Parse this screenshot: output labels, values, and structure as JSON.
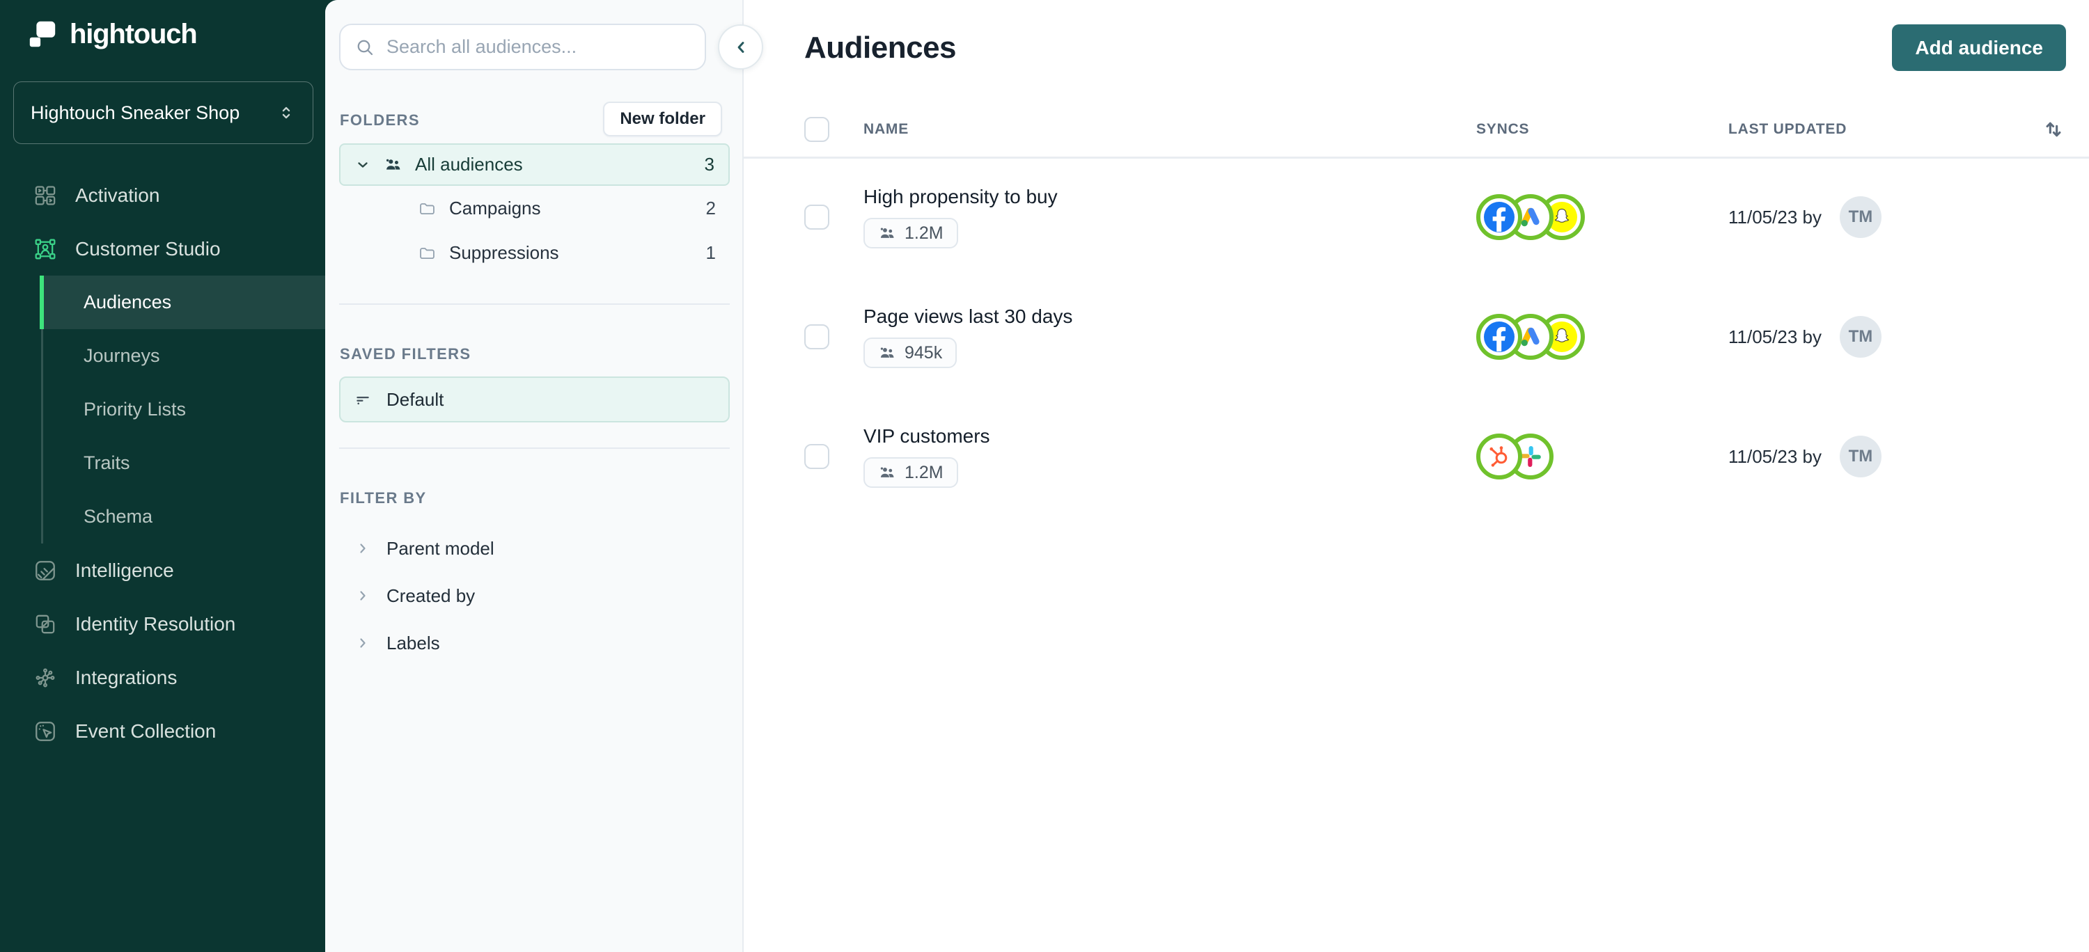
{
  "sidebar": {
    "logo_text": "hightouch",
    "workspace": {
      "name": "Hightouch Sneaker Shop"
    },
    "nav": [
      {
        "label": "Activation",
        "icon": "activation-icon",
        "active": false
      },
      {
        "label": "Customer Studio",
        "icon": "customer-studio-icon",
        "active": true,
        "children": [
          {
            "label": "Audiences",
            "selected": true
          },
          {
            "label": "Journeys",
            "selected": false
          },
          {
            "label": "Priority Lists",
            "selected": false
          },
          {
            "label": "Traits",
            "selected": false
          },
          {
            "label": "Schema",
            "selected": false
          }
        ]
      },
      {
        "label": "Intelligence",
        "icon": "intelligence-icon",
        "active": false
      },
      {
        "label": "Identity Resolution",
        "icon": "identity-resolution-icon",
        "active": false
      },
      {
        "label": "Integrations",
        "icon": "integrations-icon",
        "active": false
      },
      {
        "label": "Event Collection",
        "icon": "event-collection-icon",
        "active": false
      }
    ]
  },
  "panel": {
    "search_placeholder": "Search all audiences...",
    "folders_label": "FOLDERS",
    "new_folder_button": "New folder",
    "folders": [
      {
        "label": "All audiences",
        "count": "3",
        "icon": "people-icon",
        "selected": true
      },
      {
        "label": "Campaigns",
        "count": "2",
        "icon": "folder-icon",
        "selected": false
      },
      {
        "label": "Suppressions",
        "count": "1",
        "icon": "folder-icon",
        "selected": false
      }
    ],
    "saved_filters_label": "SAVED FILTERS",
    "saved_filters": [
      {
        "label": "Default",
        "icon": "filter-lines-icon",
        "selected": true
      }
    ],
    "filter_by_label": "FILTER BY",
    "filter_groups": [
      {
        "label": "Parent model"
      },
      {
        "label": "Created by"
      },
      {
        "label": "Labels"
      }
    ]
  },
  "main": {
    "title": "Audiences",
    "add_button": "Add audience",
    "table": {
      "columns": [
        "NAME",
        "SYNCS",
        "LAST UPDATED"
      ],
      "rows": [
        {
          "name": "High propensity to buy",
          "size": "1.2M",
          "syncs": [
            "facebook",
            "google-ads",
            "snapchat"
          ],
          "updated": "11/05/23 by",
          "avatar": "TM"
        },
        {
          "name": "Page views last 30 days",
          "size": "945k",
          "syncs": [
            "facebook",
            "google-ads",
            "snapchat"
          ],
          "updated": "11/05/23 by",
          "avatar": "TM"
        },
        {
          "name": "VIP customers",
          "size": "1.2M",
          "syncs": [
            "hubspot",
            "slack"
          ],
          "updated": "11/05/23 by",
          "avatar": "TM"
        }
      ]
    }
  },
  "colors": {
    "sidebar_bg": "#0b3631",
    "accent_green": "#3de47c",
    "nav_icon_green": "#3bd389",
    "button_teal": "#2b6c72",
    "selected_teal_bg": "#e9f6f3",
    "selected_teal_border": "#cbe5df",
    "sync_ring_green": "#70c22c",
    "facebook_blue": "#1877F2",
    "snapchat_yellow": "#FFFC00",
    "hubspot_orange": "#FF5C35"
  }
}
